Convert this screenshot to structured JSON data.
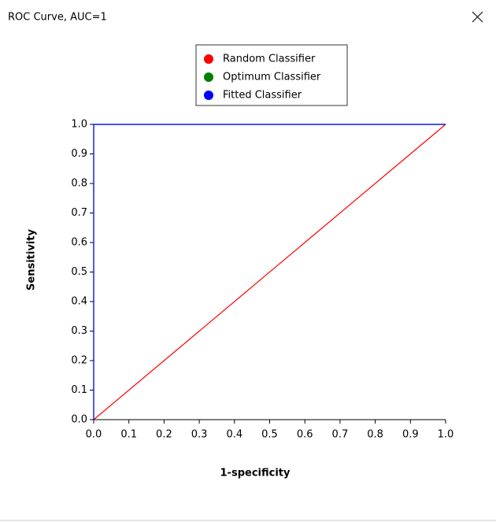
{
  "window": {
    "title": "ROC Curve, AUC=1"
  },
  "chart_data": {
    "type": "line",
    "xlabel": "1-specificity",
    "ylabel": "Sensitivity",
    "xlim": [
      0,
      1
    ],
    "ylim": [
      0,
      1
    ],
    "xticks": [
      {
        "value": 0,
        "label": "0.0"
      },
      0.1,
      0.2,
      0.3,
      0.4,
      0.5,
      0.6,
      0.7,
      0.8,
      0.9,
      {
        "value": 1,
        "label": "1.0"
      }
    ],
    "yticks": [
      {
        "value": 0,
        "label": "0.0"
      },
      0.1,
      0.2,
      0.3,
      0.4,
      0.5,
      0.6,
      0.7,
      0.8,
      0.9,
      {
        "value": 1,
        "label": "1.0"
      }
    ],
    "legend": "top",
    "series": [
      {
        "name": "Random Classifier",
        "color": "#ff0000",
        "x": [
          0,
          1
        ],
        "values": [
          0,
          1
        ]
      },
      {
        "name": "Optimum Classifier",
        "color": "#008000",
        "x": [
          0,
          0,
          1
        ],
        "values": [
          0,
          1,
          1
        ]
      },
      {
        "name": "Fitted Classifier",
        "color": "#0000ff",
        "x": [
          0,
          0,
          1
        ],
        "values": [
          0,
          1,
          1
        ]
      }
    ]
  }
}
